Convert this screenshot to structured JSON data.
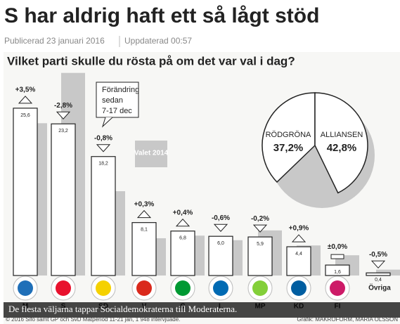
{
  "header": {
    "title": "S har aldrig haft ett så lågt stöd",
    "published": "Publicerad 23 januari 2016",
    "updated": "Uppdaterad 00:57"
  },
  "chart_data": [
    {
      "type": "bar",
      "title": "Vilket parti skulle du rösta på om det var val i dag?",
      "categories": [
        "M",
        "S",
        "SD",
        "V",
        "C",
        "L",
        "MP",
        "KD",
        "FI",
        "Övriga"
      ],
      "values": [
        25.6,
        23.2,
        18.2,
        8.1,
        6.8,
        6.0,
        5.9,
        4.4,
        1.6,
        0.4
      ],
      "value_labels": [
        "25,6",
        "23,2",
        "18,2",
        "8,1",
        "6,8",
        "6,0",
        "5,9",
        "4,4",
        "1,6",
        "0,4"
      ],
      "color": "#ffffff",
      "election": {
        "name": "Valet 2014",
        "color": "#c8c8c8",
        "values": [
          23.3,
          31.0,
          12.9,
          5.7,
          6.1,
          5.4,
          6.9,
          4.6,
          3.1,
          0.9
        ]
      },
      "change": {
        "values": [
          3.5,
          -2.8,
          -0.8,
          0.3,
          0.4,
          -0.6,
          -0.2,
          0.9,
          0.0,
          -0.5
        ],
        "value_labels": [
          "+3,5%",
          "-2,8%",
          "-0,8%",
          "+0,3%",
          "+0,4%",
          "-0,6%",
          "-0,2%",
          "+0,9%",
          "±0,0%",
          "-0,5%"
        ]
      },
      "annotation": [
        "Förändring",
        "sedan",
        "7-17 dec"
      ]
    },
    {
      "type": "pie",
      "categories": [
        "RÖDGRÖNA",
        "ALLIANSEN"
      ],
      "values": [
        37.2,
        42.8
      ],
      "value_labels": [
        "37,2%",
        "42,8%"
      ]
    }
  ],
  "caption": "De flesta väljarna tappar Socialdemokraterna till Moderaterna.",
  "footer": {
    "source": "© 2016 Sifo samt GP och SvD Mätperiod 11-21 jan, 1 948 intervjuade.",
    "credit": "Grafik: MAKROFORM, MARIA OLSSON"
  }
}
